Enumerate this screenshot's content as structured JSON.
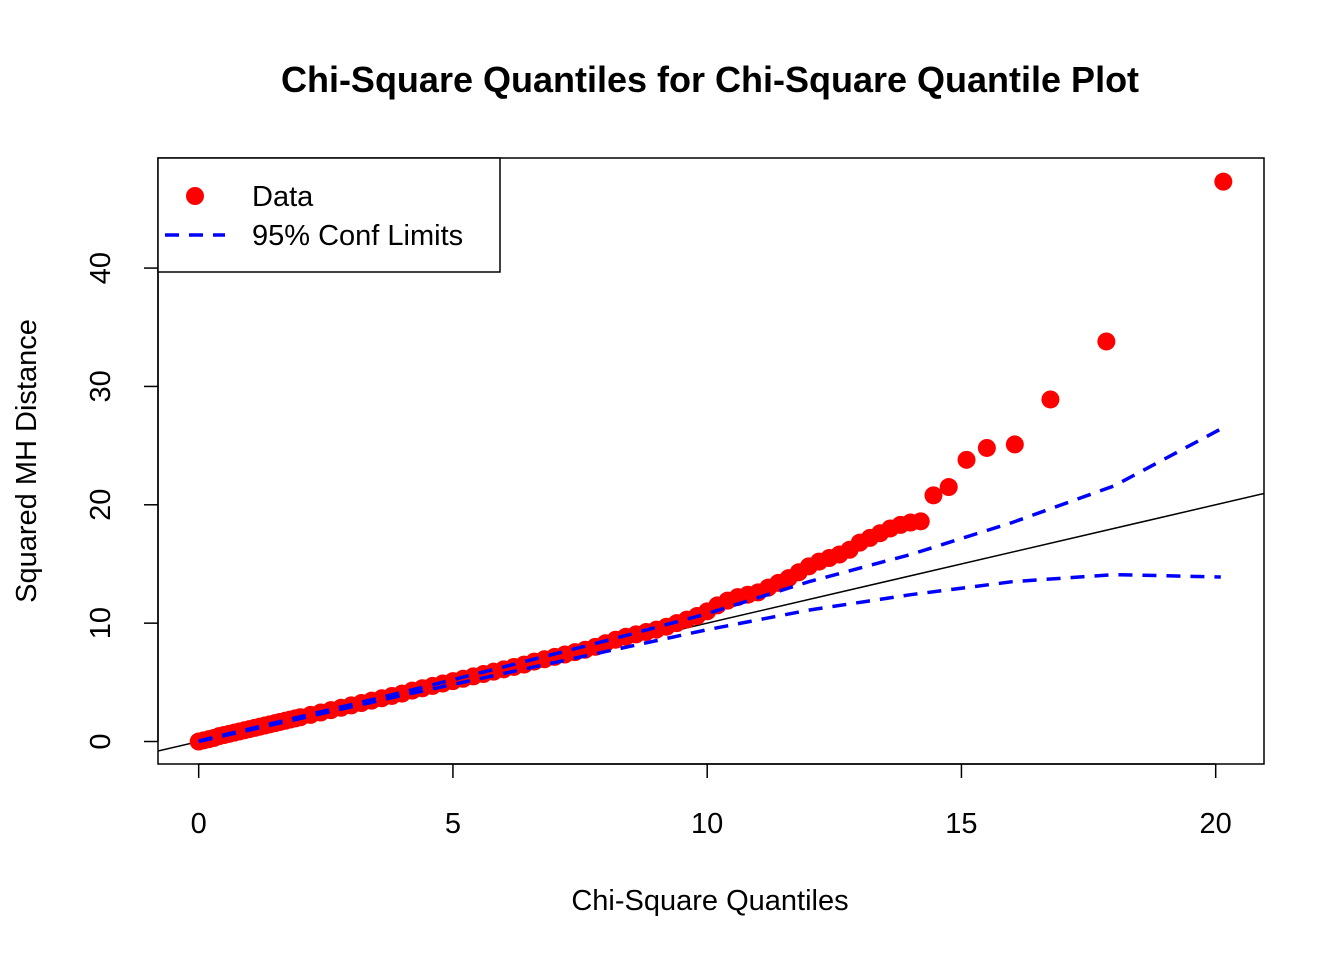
{
  "chart_data": {
    "type": "scatter",
    "title": "Chi-Square Quantiles for Chi-Square Quantile Plot",
    "xlabel": "Chi-Square Quantiles",
    "ylabel": "Squared MH Distance",
    "xlim": [
      -0.8,
      20.95
    ],
    "ylim": [
      -1.9,
      49.3
    ],
    "xticks": [
      0,
      5,
      10,
      15,
      20
    ],
    "yticks": [
      0,
      10,
      20,
      30,
      40
    ],
    "grid": false,
    "legend_position": "top-left",
    "legend": [
      {
        "label": "Data",
        "marker": "point",
        "color": "#ff0000"
      },
      {
        "label": "95% Conf Limits",
        "marker": "dashed-line",
        "color": "#0000ff"
      }
    ],
    "series": [
      {
        "name": "Data",
        "color": "#ff0000",
        "points": [
          [
            0.0,
            0.0
          ],
          [
            0.1,
            0.1
          ],
          [
            0.2,
            0.2
          ],
          [
            0.3,
            0.3
          ],
          [
            0.4,
            0.45
          ],
          [
            0.5,
            0.55
          ],
          [
            0.6,
            0.65
          ],
          [
            0.7,
            0.75
          ],
          [
            0.8,
            0.85
          ],
          [
            0.9,
            0.95
          ],
          [
            1.0,
            1.05
          ],
          [
            1.1,
            1.15
          ],
          [
            1.2,
            1.25
          ],
          [
            1.3,
            1.35
          ],
          [
            1.4,
            1.45
          ],
          [
            1.5,
            1.55
          ],
          [
            1.6,
            1.65
          ],
          [
            1.7,
            1.75
          ],
          [
            1.8,
            1.85
          ],
          [
            1.9,
            1.95
          ],
          [
            2.0,
            2.05
          ],
          [
            2.2,
            2.25
          ],
          [
            2.4,
            2.45
          ],
          [
            2.6,
            2.65
          ],
          [
            2.8,
            2.85
          ],
          [
            3.0,
            3.05
          ],
          [
            3.2,
            3.25
          ],
          [
            3.4,
            3.45
          ],
          [
            3.6,
            3.65
          ],
          [
            3.8,
            3.85
          ],
          [
            4.0,
            4.05
          ],
          [
            4.2,
            4.3
          ],
          [
            4.4,
            4.5
          ],
          [
            4.6,
            4.7
          ],
          [
            4.8,
            4.9
          ],
          [
            5.0,
            5.1
          ],
          [
            5.2,
            5.3
          ],
          [
            5.4,
            5.5
          ],
          [
            5.6,
            5.7
          ],
          [
            5.8,
            5.9
          ],
          [
            6.0,
            6.1
          ],
          [
            6.2,
            6.3
          ],
          [
            6.4,
            6.5
          ],
          [
            6.6,
            6.75
          ],
          [
            6.8,
            6.95
          ],
          [
            7.0,
            7.15
          ],
          [
            7.2,
            7.35
          ],
          [
            7.4,
            7.55
          ],
          [
            7.6,
            7.75
          ],
          [
            7.8,
            8.0
          ],
          [
            8.0,
            8.3
          ],
          [
            8.2,
            8.6
          ],
          [
            8.4,
            8.85
          ],
          [
            8.6,
            9.05
          ],
          [
            8.8,
            9.25
          ],
          [
            9.0,
            9.45
          ],
          [
            9.2,
            9.7
          ],
          [
            9.4,
            10.0
          ],
          [
            9.6,
            10.3
          ],
          [
            9.8,
            10.6
          ],
          [
            10.0,
            11.0
          ],
          [
            10.2,
            11.5
          ],
          [
            10.4,
            11.9
          ],
          [
            10.6,
            12.2
          ],
          [
            10.8,
            12.4
          ],
          [
            11.0,
            12.6
          ],
          [
            11.2,
            13.0
          ],
          [
            11.4,
            13.4
          ],
          [
            11.6,
            13.8
          ],
          [
            11.8,
            14.3
          ],
          [
            12.0,
            14.8
          ],
          [
            12.2,
            15.2
          ],
          [
            12.4,
            15.5
          ],
          [
            12.6,
            15.8
          ],
          [
            12.8,
            16.2
          ],
          [
            13.0,
            16.8
          ],
          [
            13.2,
            17.2
          ],
          [
            13.4,
            17.6
          ],
          [
            13.6,
            18.0
          ],
          [
            13.8,
            18.3
          ],
          [
            14.0,
            18.5
          ],
          [
            14.2,
            18.6
          ],
          [
            14.45,
            20.8
          ],
          [
            14.75,
            21.5
          ],
          [
            15.1,
            23.8
          ],
          [
            15.5,
            24.8
          ],
          [
            16.05,
            25.1
          ],
          [
            16.75,
            28.9
          ],
          [
            17.85,
            33.8
          ],
          [
            20.15,
            47.3
          ]
        ]
      },
      {
        "name": "95% Conf Limits (upper)",
        "color": "#0000ff",
        "line_style": "dashed",
        "points": [
          [
            0,
            0.05
          ],
          [
            2,
            2.1
          ],
          [
            4,
            4.15
          ],
          [
            6,
            6.3
          ],
          [
            8,
            8.5
          ],
          [
            10,
            10.8
          ],
          [
            12,
            13.5
          ],
          [
            14,
            15.8
          ],
          [
            16,
            18.5
          ],
          [
            18,
            21.6
          ],
          [
            20.1,
            26.4
          ]
        ]
      },
      {
        "name": "95% Conf Limits (lower)",
        "color": "#0000ff",
        "line_style": "dashed",
        "points": [
          [
            0,
            0
          ],
          [
            2,
            1.95
          ],
          [
            4,
            3.9
          ],
          [
            6,
            5.75
          ],
          [
            8,
            7.6
          ],
          [
            10,
            9.45
          ],
          [
            12,
            11.1
          ],
          [
            14,
            12.4
          ],
          [
            16,
            13.5
          ],
          [
            18,
            14.1
          ],
          [
            20.1,
            13.9
          ]
        ]
      },
      {
        "name": "Reference line",
        "color": "#000000",
        "line_style": "solid",
        "points": [
          [
            -0.8,
            -0.8
          ],
          [
            20.95,
            20.95
          ]
        ]
      }
    ]
  }
}
